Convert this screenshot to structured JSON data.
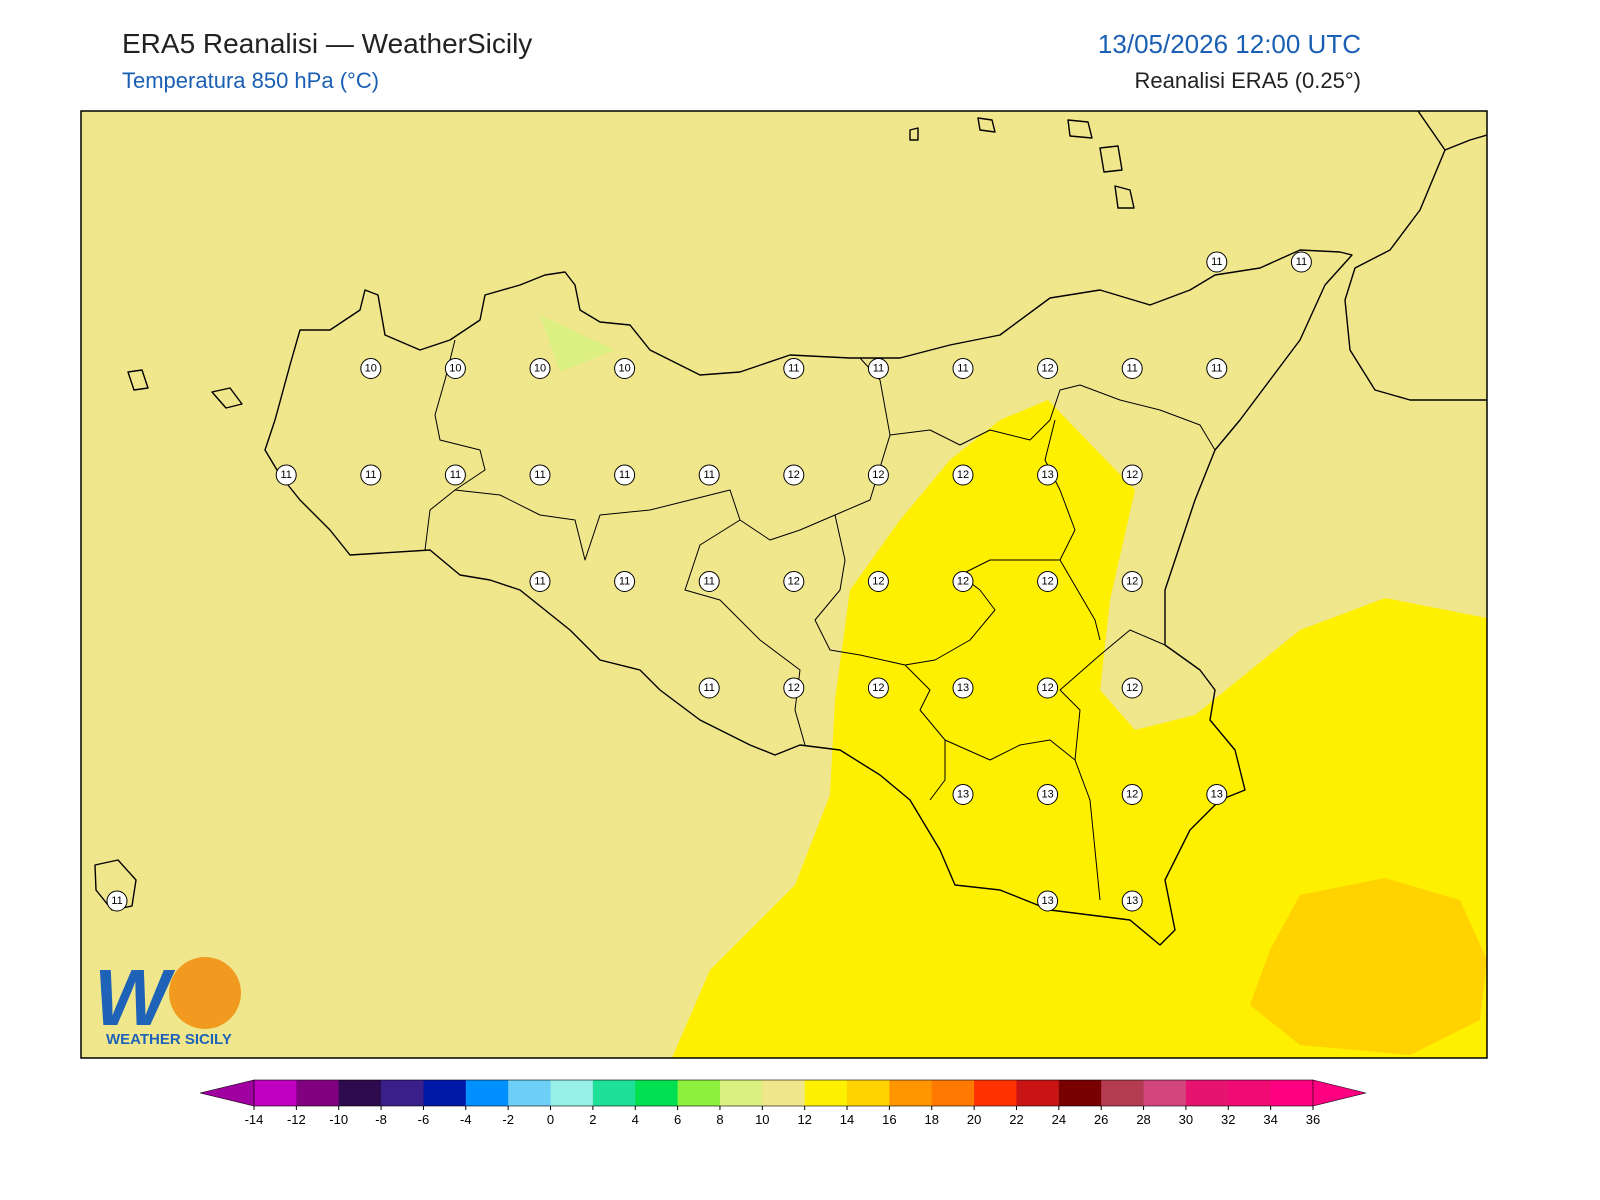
{
  "header": {
    "title": "ERA5 Reanalisi — WeatherSicily",
    "subtitle": "Temperatura 850 hPa (°C)",
    "datetime": "13/05/2026 12:00 UTC",
    "source": "Reanalisi ERA5 (0.25°)"
  },
  "logo": {
    "text": "WEATHER SICILY"
  },
  "grid": {
    "rows": [
      [
        null,
        null,
        null,
        null,
        null,
        null,
        null,
        null,
        null,
        null,
        null,
        null,
        null,
        11,
        11
      ],
      [
        null,
        null,
        null,
        10,
        10,
        10,
        10,
        null,
        11,
        11,
        11,
        12,
        11,
        11,
        null
      ],
      [
        null,
        null,
        11,
        11,
        11,
        11,
        11,
        11,
        12,
        12,
        12,
        13,
        12,
        null,
        null
      ],
      [
        null,
        null,
        null,
        null,
        null,
        11,
        11,
        11,
        12,
        12,
        12,
        12,
        12,
        null,
        null
      ],
      [
        null,
        null,
        null,
        null,
        null,
        null,
        null,
        11,
        12,
        12,
        13,
        12,
        12,
        null,
        null
      ],
      [
        null,
        null,
        null,
        null,
        null,
        null,
        null,
        null,
        null,
        null,
        13,
        13,
        12,
        13,
        null
      ],
      [
        11,
        null,
        null,
        null,
        null,
        null,
        null,
        null,
        null,
        null,
        null,
        13,
        13,
        null,
        null
      ]
    ]
  },
  "colorbar": {
    "ticks": [
      -14,
      -12,
      -10,
      -8,
      -6,
      -4,
      -2,
      0,
      2,
      4,
      6,
      8,
      10,
      12,
      14,
      16,
      18,
      20,
      22,
      24,
      26,
      28,
      30,
      32,
      34,
      36
    ],
    "colors": [
      "#c000c0",
      "#800080",
      "#2e0a4e",
      "#3a1f8a",
      "#0018a8",
      "#0090ff",
      "#6dcff6",
      "#96f0e6",
      "#1ee096",
      "#00e050",
      "#8cf03c",
      "#dcf082",
      "#f0e68c",
      "#fff000",
      "#ffd200",
      "#ff9600",
      "#ff7800",
      "#ff3200",
      "#c81414",
      "#780000",
      "#b43c50",
      "#d2467d",
      "#e6146e",
      "#f00a74",
      "#ff0080"
    ],
    "under_color": "#a000a0",
    "over_color": "#ff0080"
  }
}
